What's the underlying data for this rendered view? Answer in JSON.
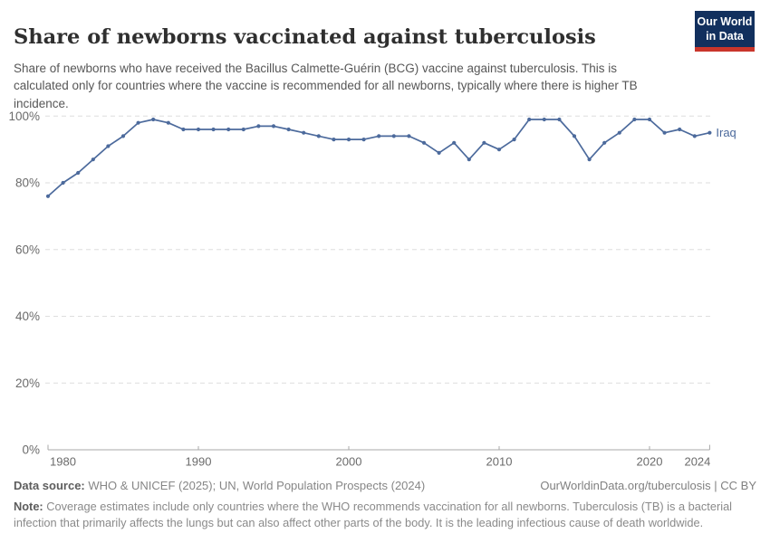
{
  "header": {
    "title": "Share of newborns vaccinated against tuberculosis",
    "subtitle": "Share of newborns who have received the Bacillus Calmette-Guérin (BCG) vaccine against tuberculosis. This is calculated only for countries where the vaccine is recommended for all newborns, typically where there is higher TB incidence.",
    "logo": {
      "line1": "Our World",
      "line2": "in Data",
      "bg_color": "#12305E",
      "bar_color": "#C9352B"
    }
  },
  "chart_data": {
    "type": "line",
    "title": "Share of newborns vaccinated against tuberculosis",
    "xlabel": "",
    "ylabel": "",
    "xlim": [
      1980,
      2024
    ],
    "ylim": [
      0,
      100
    ],
    "x_ticks": [
      1980,
      1990,
      2000,
      2010,
      2020,
      2024
    ],
    "y_ticks": [
      0,
      20,
      40,
      60,
      80,
      100
    ],
    "y_tick_suffix": "%",
    "grid": "horizontal-dashed",
    "legend_position": "end-of-line-label",
    "grid_color": "#dedede",
    "axis_color": "#a8a8a8",
    "tick_label_color": "#6b6b6b",
    "series": [
      {
        "name": "Iraq",
        "color": "#4C6A9C",
        "x": [
          1980,
          1981,
          1982,
          1983,
          1984,
          1985,
          1986,
          1987,
          1988,
          1989,
          1990,
          1991,
          1992,
          1993,
          1994,
          1995,
          1996,
          1997,
          1998,
          1999,
          2000,
          2001,
          2002,
          2003,
          2004,
          2005,
          2006,
          2007,
          2008,
          2009,
          2010,
          2011,
          2012,
          2013,
          2014,
          2015,
          2016,
          2017,
          2018,
          2019,
          2020,
          2021,
          2022,
          2023,
          2024
        ],
        "values": [
          76,
          80,
          83,
          87,
          91,
          94,
          98,
          99,
          98,
          96,
          96,
          96,
          96,
          96,
          97,
          97,
          96,
          95,
          94,
          93,
          93,
          93,
          94,
          94,
          94,
          92,
          89,
          92,
          87,
          92,
          90,
          93,
          99,
          99,
          99,
          94,
          87,
          92,
          95,
          99,
          99,
          95,
          96,
          94,
          95
        ]
      }
    ]
  },
  "footer": {
    "data_source_label": "Data source:",
    "data_source_rest": " WHO & UNICEF (2025); UN, World Population Prospects (2024)",
    "license": "OurWorldinData.org/tuberculosis | CC BY",
    "note_label": "Note:",
    "note_rest": " Coverage estimates include only countries where the WHO recommends vaccination for all newborns. Tuberculosis (TB) is a bacterial infection that primarily affects the lungs but can also affect other parts of the body. It is the leading infectious cause of death worldwide."
  }
}
